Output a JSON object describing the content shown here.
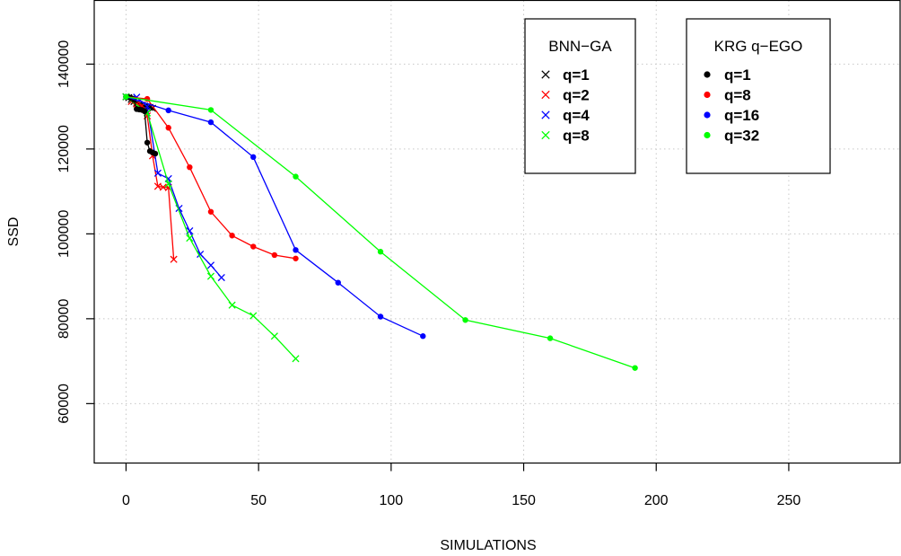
{
  "chart_data": {
    "type": "line",
    "xlabel": "SIMULATIONS",
    "ylabel": "SSD",
    "xlim": [
      -12,
      292
    ],
    "ylim": [
      46000,
      155000
    ],
    "x_ticks": [
      0,
      50,
      100,
      150,
      200,
      250
    ],
    "y_ticks": [
      60000,
      80000,
      100000,
      120000,
      140000
    ],
    "grid": true,
    "legends": [
      {
        "title": "BNN−GA",
        "placement": "upper-middle",
        "marker": "x",
        "entries": [
          "q=1",
          "q=2",
          "q=4",
          "q=8"
        ]
      },
      {
        "title": "KRG q−EGO",
        "placement": "upper-right",
        "marker": "dot",
        "entries": [
          "q=1",
          "q=8",
          "q=16",
          "q=32"
        ]
      }
    ],
    "series": [
      {
        "name": "q=1",
        "group": "BNN−GA",
        "marker": "x",
        "color": "#000000",
        "x": [
          0,
          1,
          2,
          3,
          4,
          5,
          6,
          7,
          8,
          9,
          10
        ],
        "y": [
          132300,
          132100,
          131700,
          131200,
          130800,
          130500,
          130300,
          130100,
          129900,
          129800,
          129600
        ]
      },
      {
        "name": "q=2",
        "group": "BNN−GA",
        "marker": "x",
        "color": "#ff0000",
        "x": [
          0,
          2,
          4,
          6,
          8,
          10,
          12,
          14,
          16,
          18
        ],
        "y": [
          132300,
          131200,
          130600,
          130200,
          127800,
          118400,
          111200,
          111000,
          110900,
          94000
        ]
      },
      {
        "name": "q=4",
        "group": "BNN−GA",
        "marker": "x",
        "color": "#0000ff",
        "x": [
          0,
          4,
          8,
          12,
          16,
          20,
          24,
          28,
          32,
          36
        ],
        "y": [
          132300,
          132200,
          130000,
          114300,
          113000,
          106000,
          100700,
          95200,
          92600,
          89700
        ]
      },
      {
        "name": "q=8",
        "group": "BNN−GA",
        "marker": "x",
        "color": "#00ff00",
        "x": [
          0,
          8,
          16,
          24,
          32,
          40,
          48,
          56,
          64
        ],
        "y": [
          132300,
          128500,
          111800,
          99000,
          90000,
          83200,
          80700,
          75900,
          70600
        ]
      },
      {
        "name": "q=1",
        "group": "KRG q−EGO",
        "marker": "dot",
        "color": "#000000",
        "x": [
          0,
          1,
          2,
          3,
          4,
          5,
          6,
          7,
          8,
          9,
          10,
          11
        ],
        "y": [
          132300,
          132200,
          132000,
          131600,
          129400,
          129300,
          129200,
          128900,
          121500,
          119500,
          119200,
          118900
        ]
      },
      {
        "name": "q=8",
        "group": "KRG q−EGO",
        "marker": "dot",
        "color": "#ff0000",
        "x": [
          0,
          8,
          16,
          24,
          32,
          40,
          48,
          56,
          64
        ],
        "y": [
          132300,
          131800,
          125000,
          115700,
          105200,
          99600,
          97000,
          95000,
          94200
        ]
      },
      {
        "name": "q=16",
        "group": "KRG q−EGO",
        "marker": "dot",
        "color": "#0000ff",
        "x": [
          0,
          16,
          32,
          48,
          64,
          80,
          96,
          112
        ],
        "y": [
          132300,
          129100,
          126300,
          118100,
          96200,
          88500,
          80500,
          75900
        ]
      },
      {
        "name": "q=32",
        "group": "KRG q−EGO",
        "marker": "dot",
        "color": "#00ff00",
        "x": [
          0,
          32,
          64,
          96,
          128,
          160,
          192
        ],
        "y": [
          132300,
          129200,
          113500,
          95800,
          79700,
          75400,
          68400
        ]
      }
    ]
  }
}
